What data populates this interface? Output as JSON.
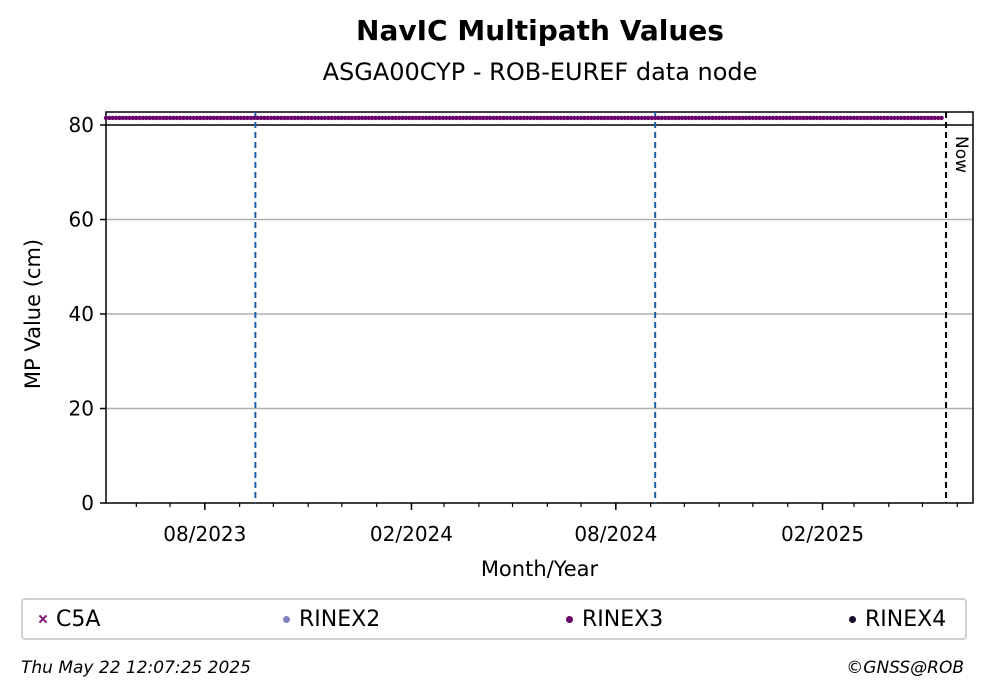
{
  "chart_data": {
    "type": "scatter",
    "title": "NavIC Multipath Values",
    "subtitle": "ASGA00CYP - ROB-EUREF data node",
    "xlabel": "Month/Year",
    "ylabel": "MP Value (cm)",
    "xlim": [
      "2023-05-05",
      "2025-06-15"
    ],
    "ylim": [
      0,
      80
    ],
    "yticks": [
      0,
      20,
      40,
      60,
      80
    ],
    "xticks": [
      {
        "date": "2023-08-01",
        "label": "08/2023"
      },
      {
        "date": "2024-02-01",
        "label": "02/2024"
      },
      {
        "date": "2024-08-01",
        "label": "08/2024"
      },
      {
        "date": "2025-02-01",
        "label": "02/2025"
      }
    ],
    "grid": "y",
    "series": [
      {
        "name": "C5A",
        "marker": "x",
        "color": "#7b1a7b",
        "points": []
      },
      {
        "name": "RINEX2",
        "marker": "dot",
        "color": "#8080c0",
        "points": []
      },
      {
        "name": "RINEX3",
        "marker": "dot",
        "color": "#6a006a",
        "start": "2023-05-05",
        "end": "2025-05-20",
        "value": 81.5
      },
      {
        "name": "RINEX4",
        "marker": "dot",
        "color": "#1a0a2a",
        "points": []
      }
    ],
    "vlines": [
      {
        "date": "2023-09-15",
        "style": "dashed",
        "color": "#1f5fa8"
      },
      {
        "date": "2024-09-05",
        "style": "dashed",
        "color": "#1f5fa8"
      }
    ],
    "now": {
      "date": "2025-05-22",
      "label": "Now"
    },
    "hline": 80,
    "legend_position": "bottom"
  },
  "footer": {
    "timestamp": "Thu May 22 12:07:25 2025",
    "credit": "©GNSS@ROB"
  }
}
